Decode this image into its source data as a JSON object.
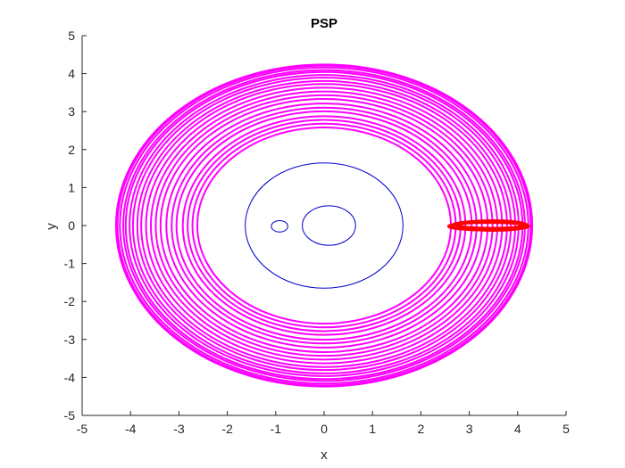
{
  "chart_data": {
    "type": "line",
    "title": "PSP",
    "xlabel": "x",
    "ylabel": "y",
    "xlim": [
      -5,
      5
    ],
    "ylim": [
      -5,
      5
    ],
    "xticks": [
      "-5",
      "-4",
      "-3",
      "-2",
      "-1",
      "0",
      "1",
      "2",
      "3",
      "4",
      "5"
    ],
    "yticks": [
      "-5",
      "-4",
      "-3",
      "-2",
      "-1",
      "0",
      "1",
      "2",
      "3",
      "4",
      "5"
    ],
    "grid": false,
    "legend": "none",
    "colors": {
      "trajectory": "#ff00ff",
      "contour": "#0000cc",
      "ring": "#ff0000",
      "axes": "#262626"
    },
    "series": [
      {
        "role": "trajectory",
        "kind": "rings",
        "center": [
          0,
          0
        ],
        "ry_scale": 0.986,
        "rx": [
          4.3,
          4.27,
          4.22,
          4.15,
          4.1,
          4.02,
          3.95,
          3.86,
          3.78,
          3.68,
          3.58,
          3.48,
          3.38,
          3.26,
          3.15,
          3.05,
          2.92,
          2.82,
          2.72,
          2.62
        ]
      },
      {
        "role": "contour",
        "kind": "ellipses",
        "items": [
          {
            "cx": 0,
            "cy": 0,
            "rx": 1.63,
            "ry": 1.65
          },
          {
            "cx": 0.1,
            "cy": 0,
            "rx": 0.55,
            "ry": 0.52
          },
          {
            "cx": -0.92,
            "cy": -0.02,
            "rx": 0.17,
            "ry": 0.15
          }
        ]
      },
      {
        "role": "ring",
        "kind": "ellipses",
        "items": [
          {
            "cx": 3.42,
            "cy": 0.0,
            "rx": 0.78,
            "ry": 0.12
          },
          {
            "cx": 3.46,
            "cy": 0.02,
            "rx": 0.72,
            "ry": 0.09
          },
          {
            "cx": 3.4,
            "cy": -0.02,
            "rx": 0.83,
            "ry": 0.1
          },
          {
            "cx": 3.5,
            "cy": 0.0,
            "rx": 0.7,
            "ry": 0.13
          }
        ]
      }
    ]
  }
}
